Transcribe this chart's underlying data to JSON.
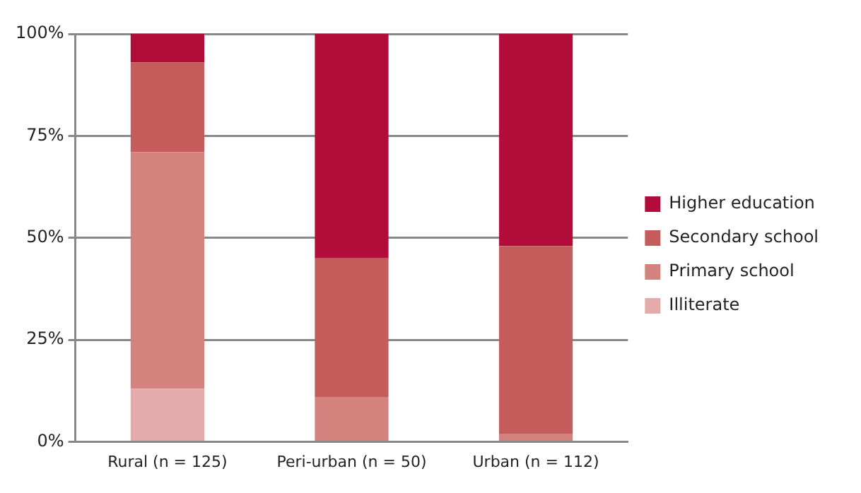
{
  "chart_data": {
    "type": "bar",
    "stacked": true,
    "categories": [
      "Rural (n = 125)",
      "Peri-urban (n = 50)",
      "Urban (n = 112)"
    ],
    "series": [
      {
        "name": "Illiterate",
        "color": "#e3acaa",
        "values": [
          13,
          0,
          0
        ]
      },
      {
        "name": "Primary school",
        "color": "#d4827e",
        "values": [
          58,
          11,
          2
        ]
      },
      {
        "name": "Secondary school",
        "color": "#c55c5c",
        "values": [
          22,
          34,
          46
        ]
      },
      {
        "name": "Higher education",
        "color": "#b20c3a",
        "values": [
          7,
          55,
          52
        ]
      }
    ],
    "ylim": [
      0,
      100
    ],
    "yticks": [
      {
        "value": 0,
        "label": "0%"
      },
      {
        "value": 25,
        "label": "25%"
      },
      {
        "value": 50,
        "label": "50%"
      },
      {
        "value": 75,
        "label": "75%"
      },
      {
        "value": 100,
        "label": "100%"
      }
    ],
    "grid": "y",
    "legend": "right"
  }
}
